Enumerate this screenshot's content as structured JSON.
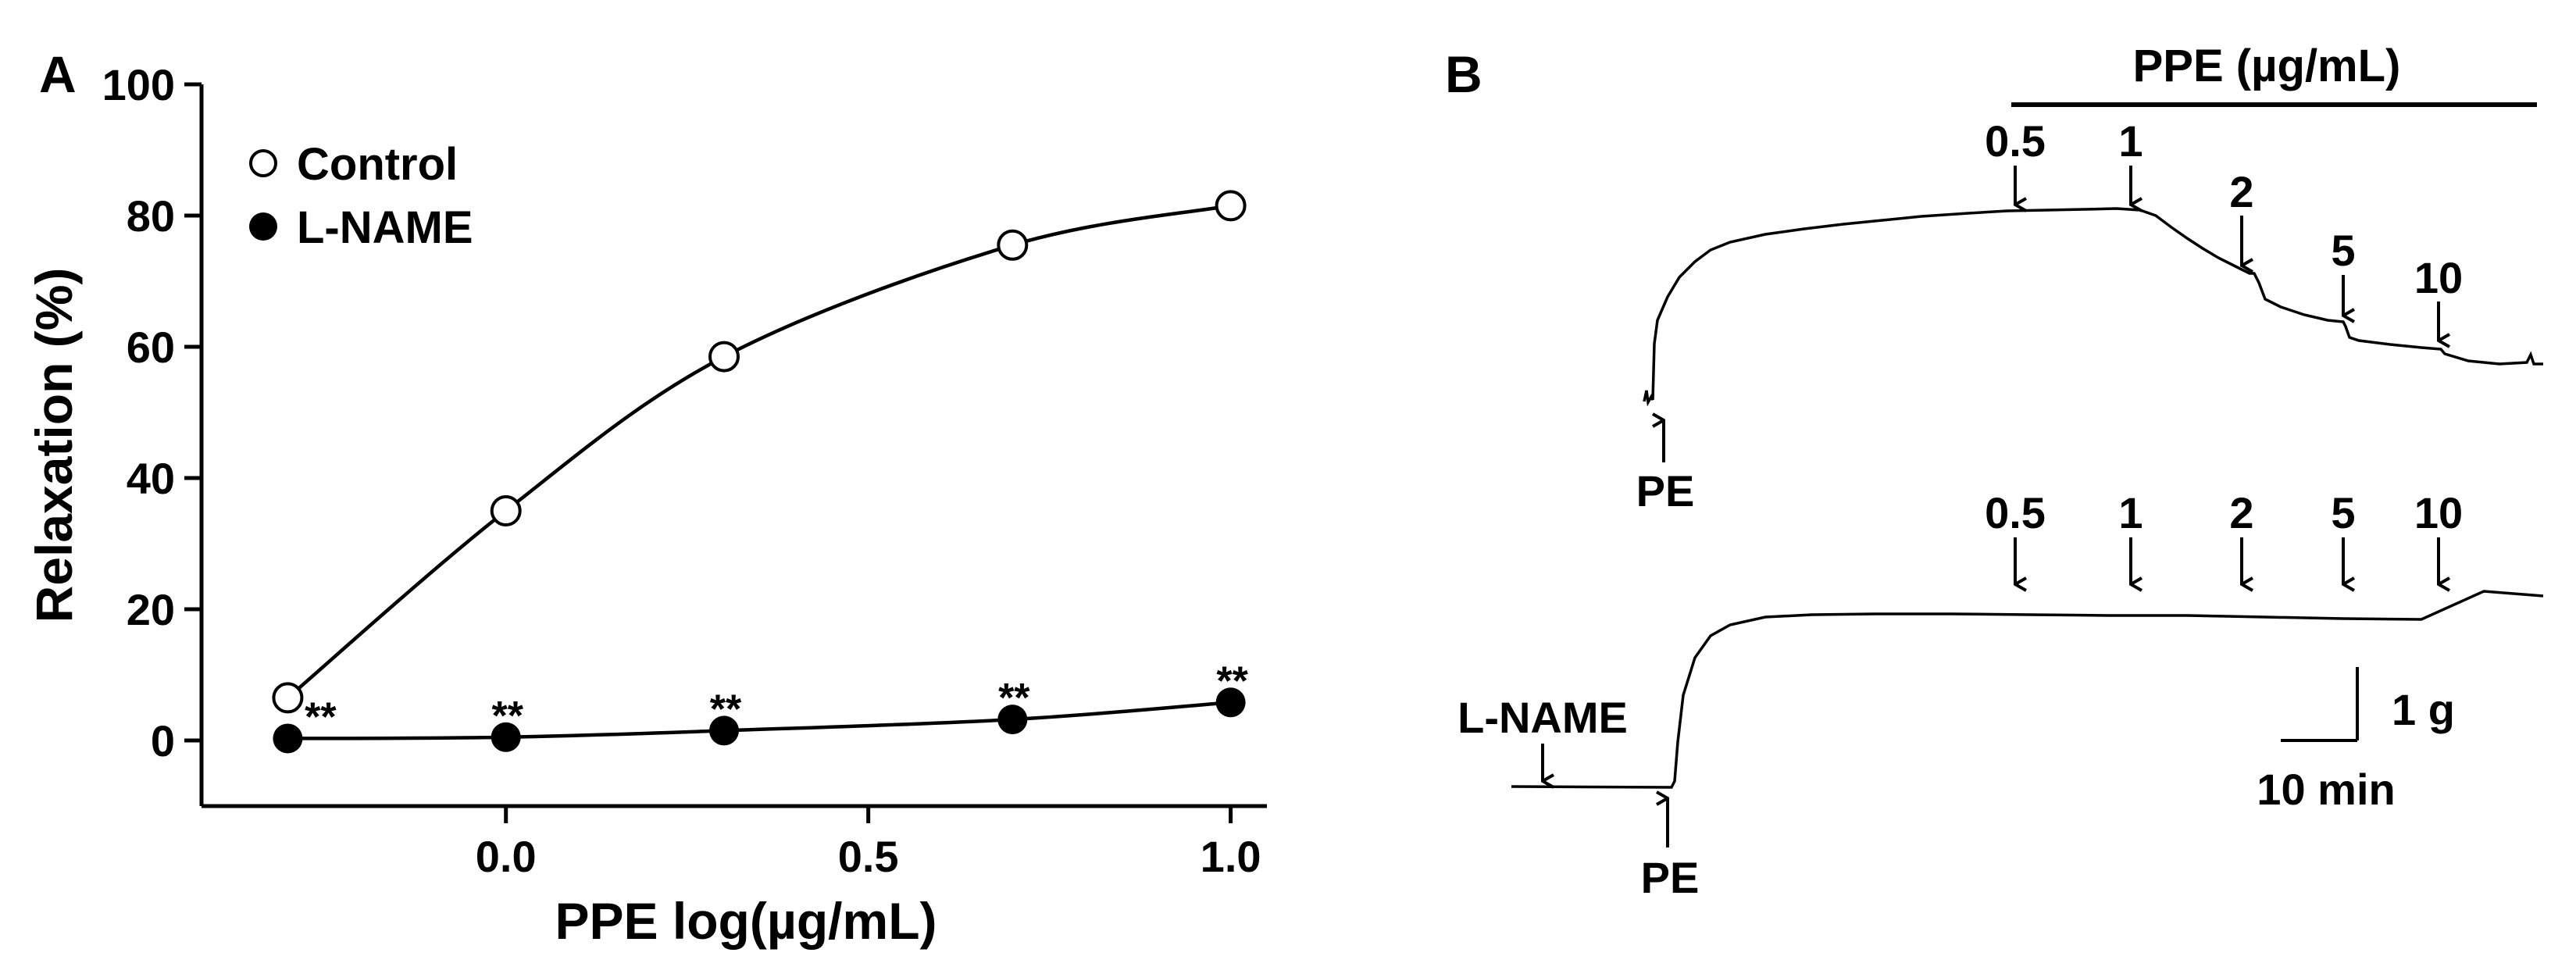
{
  "chart_data": [
    {
      "type": "line",
      "panel_label": "A",
      "xlabel": "PPE log(µg/mL)",
      "ylabel": "Relaxation (%)",
      "xlim": [
        -0.42,
        1.05
      ],
      "ylim": [
        -10,
        100
      ],
      "x_ticks": [
        0.0,
        0.5,
        1.0
      ],
      "x_tick_labels": [
        "0.0",
        "0.5",
        "1.0"
      ],
      "y_ticks": [
        0,
        20,
        40,
        60,
        80,
        100
      ],
      "y_tick_labels": [
        "0",
        "20",
        "40",
        "60",
        "80",
        "100"
      ],
      "grid": false,
      "legend_position": "top-left",
      "series": [
        {
          "name": "Control",
          "marker": "open-circle",
          "x": [
            -0.301,
            0.0,
            0.301,
            0.699,
            1.0
          ],
          "y": [
            6.5,
            35,
            58.5,
            75.5,
            81.5
          ]
        },
        {
          "name": "L-NAME",
          "marker": "filled-circle",
          "x": [
            -0.301,
            0.0,
            0.301,
            0.699,
            1.0
          ],
          "y": [
            0.3,
            0.5,
            1.5,
            3.2,
            5.8
          ],
          "annotations": [
            "**",
            "**",
            "**",
            "**",
            "**"
          ]
        }
      ]
    },
    {
      "type": "line",
      "panel_label": "B",
      "title": "PPE (µg/mL)",
      "traces": [
        {
          "id": "control",
          "start_label": "PE",
          "dose_labels": [
            "0.5",
            "1",
            "2",
            "5",
            "10"
          ]
        },
        {
          "id": "l-name",
          "pretreatment_label": "L-NAME",
          "start_label": "PE",
          "dose_labels": [
            "0.5",
            "1",
            "2",
            "5",
            "10"
          ]
        }
      ],
      "scale_bar": {
        "vertical_label": "1 g",
        "horizontal_label": "10 min"
      }
    }
  ]
}
